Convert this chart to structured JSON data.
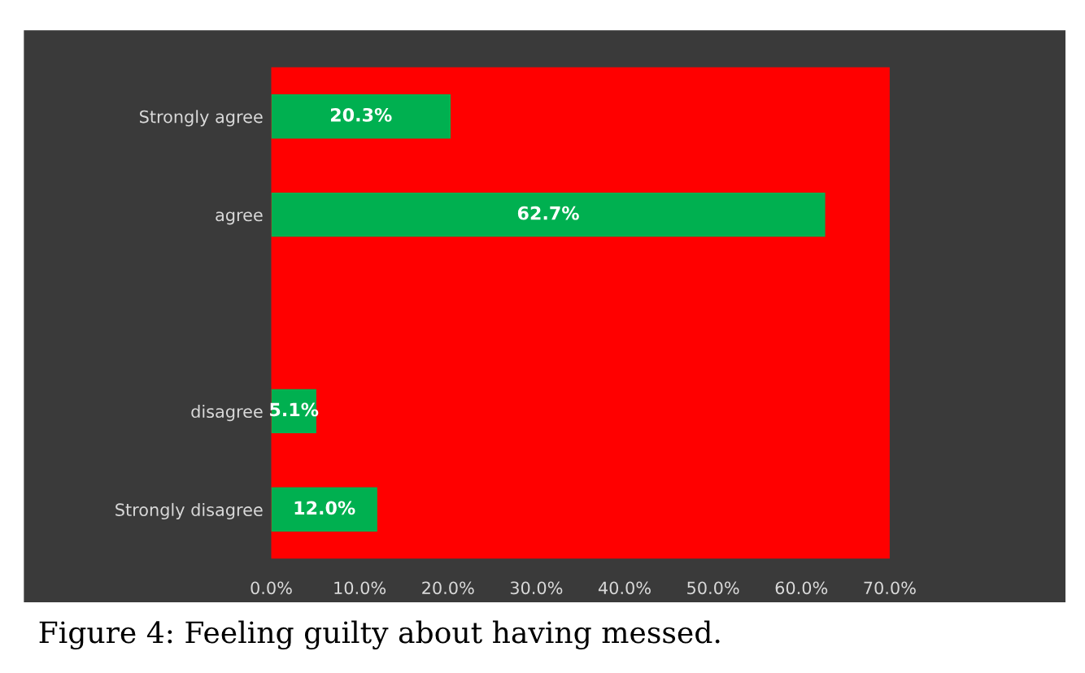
{
  "chart_data": {
    "type": "bar",
    "orientation": "horizontal",
    "categories": [
      "Strongly agree",
      "agree",
      null,
      "disagree",
      "Strongly disagree"
    ],
    "values": [
      20.3,
      62.7,
      null,
      5.1,
      12.0
    ],
    "value_labels": [
      "20.3%",
      "62.7%",
      null,
      "5.1%",
      "12.0%"
    ],
    "color": "#00b050",
    "xlim": [
      0,
      70
    ],
    "xticks": [
      {
        "value": 0,
        "label": "0.0%"
      },
      {
        "value": 10,
        "label": "10.0%"
      },
      {
        "value": 20,
        "label": "20.0%"
      },
      {
        "value": 30,
        "label": "30.0%"
      },
      {
        "value": 40,
        "label": "40.0%"
      },
      {
        "value": 50,
        "label": "50.0%"
      },
      {
        "value": 60,
        "label": "60.0%"
      },
      {
        "value": 70,
        "label": "70.0%"
      }
    ],
    "grid": false,
    "annotations": [
      "Figure 4: Feeling guilty about having messed."
    ]
  }
}
